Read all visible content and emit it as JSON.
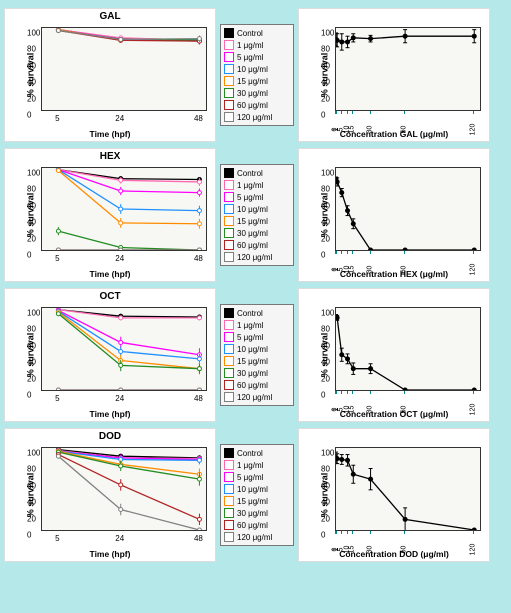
{
  "page_bg": "#b5e8e8",
  "legend": {
    "labels": [
      "Control",
      "1 μg/ml",
      "5 μg/ml",
      "10 μg/ml",
      "15 μg/ml",
      "30 μg/ml",
      "60 μg/ml",
      "120 μg/ml"
    ],
    "colors": [
      "#000000",
      "#ff69b4",
      "#ff00ff",
      "#1e90ff",
      "#ff8c00",
      "#228b22",
      "#b22222",
      "#808080"
    ]
  },
  "axes": {
    "y": {
      "label": "% survival",
      "min": 0,
      "max": 100,
      "ticks": [
        0,
        20,
        40,
        60,
        80,
        100
      ]
    }
  },
  "panels": [
    {
      "name": "GAL",
      "time": {
        "x": [
          5,
          24,
          48
        ],
        "xlabel": "Time (hpf)",
        "series": [
          [
            98,
            87,
            86
          ],
          [
            98,
            88,
            85
          ],
          [
            98,
            86,
            84
          ],
          [
            97,
            86,
            86
          ],
          [
            98,
            85,
            85
          ],
          [
            97,
            86,
            85
          ],
          [
            97,
            85,
            84
          ],
          [
            97,
            86,
            87
          ]
        ],
        "err": [
          [
            2,
            3,
            4
          ],
          [
            2,
            3,
            4
          ],
          [
            2,
            3,
            4
          ],
          [
            2,
            3,
            4
          ],
          [
            2,
            3,
            4
          ],
          [
            2,
            3,
            4
          ],
          [
            2,
            3,
            4
          ],
          [
            2,
            3,
            4
          ]
        ]
      },
      "conc": {
        "xlabel": "Concentration GAL (μg/ml)",
        "x": [
          0,
          1,
          5,
          10,
          15,
          30,
          60,
          120
        ],
        "y": [
          86,
          85,
          83,
          83,
          88,
          87,
          90,
          90
        ],
        "err": [
          8,
          8,
          10,
          7,
          5,
          4,
          8,
          8
        ]
      }
    },
    {
      "name": "HEX",
      "time": {
        "x": [
          5,
          24,
          48
        ],
        "xlabel": "Time (hpf)",
        "series": [
          [
            98,
            87,
            86
          ],
          [
            98,
            85,
            83
          ],
          [
            98,
            72,
            70
          ],
          [
            98,
            50,
            48
          ],
          [
            97,
            33,
            32
          ],
          [
            23,
            3,
            0
          ],
          [
            0,
            0,
            0
          ],
          [
            0,
            0,
            0
          ]
        ],
        "err": [
          [
            2,
            3,
            3
          ],
          [
            3,
            4,
            5
          ],
          [
            3,
            5,
            5
          ],
          [
            3,
            6,
            6
          ],
          [
            3,
            6,
            6
          ],
          [
            5,
            3,
            0
          ],
          [
            0,
            0,
            0
          ],
          [
            0,
            0,
            0
          ]
        ]
      },
      "conc": {
        "xlabel": "Concentration HEX (μg/ml)",
        "x": [
          0,
          1,
          5,
          10,
          15,
          30,
          60,
          120
        ],
        "y": [
          86,
          83,
          70,
          48,
          32,
          0,
          0,
          0
        ],
        "err": [
          3,
          5,
          5,
          6,
          6,
          0,
          0,
          0
        ]
      }
    },
    {
      "name": "OCT",
      "time": {
        "x": [
          5,
          24,
          48
        ],
        "xlabel": "Time (hpf)",
        "series": [
          [
            98,
            90,
            89
          ],
          [
            98,
            88,
            88
          ],
          [
            97,
            58,
            43
          ],
          [
            96,
            47,
            38
          ],
          [
            95,
            36,
            26
          ],
          [
            93,
            30,
            26
          ],
          [
            0,
            0,
            0
          ],
          [
            0,
            0,
            0
          ]
        ],
        "err": [
          [
            2,
            3,
            3
          ],
          [
            3,
            3,
            3
          ],
          [
            3,
            7,
            8
          ],
          [
            3,
            6,
            6
          ],
          [
            3,
            7,
            7
          ],
          [
            3,
            7,
            6
          ],
          [
            0,
            0,
            0
          ],
          [
            0,
            0,
            0
          ]
        ]
      },
      "conc": {
        "xlabel": "Concentration OCT (μg/ml)",
        "x": [
          0,
          1,
          5,
          10,
          15,
          30,
          60,
          120
        ],
        "y": [
          89,
          88,
          43,
          38,
          26,
          26,
          0,
          0
        ],
        "err": [
          3,
          3,
          8,
          6,
          7,
          6,
          0,
          0
        ]
      }
    },
    {
      "name": "DOD",
      "time": {
        "x": [
          5,
          24,
          48
        ],
        "xlabel": "Time (hpf)",
        "series": [
          [
            98,
            90,
            88
          ],
          [
            97,
            88,
            87
          ],
          [
            96,
            88,
            86
          ],
          [
            96,
            86,
            85
          ],
          [
            96,
            80,
            68
          ],
          [
            95,
            78,
            62
          ],
          [
            92,
            55,
            13
          ],
          [
            90,
            25,
            0
          ]
        ],
        "err": [
          [
            2,
            3,
            3
          ],
          [
            2,
            3,
            3
          ],
          [
            3,
            4,
            4
          ],
          [
            3,
            4,
            5
          ],
          [
            3,
            5,
            7
          ],
          [
            3,
            6,
            8
          ],
          [
            3,
            7,
            7
          ],
          [
            3,
            7,
            0
          ]
        ]
      },
      "conc": {
        "xlabel": "Concentration DOD (μg/ml)",
        "x": [
          0,
          1,
          5,
          10,
          15,
          30,
          60,
          120
        ],
        "y": [
          88,
          87,
          86,
          85,
          68,
          62,
          13,
          0
        ],
        "err": [
          7,
          6,
          6,
          7,
          11,
          13,
          14,
          0
        ]
      }
    }
  ]
}
